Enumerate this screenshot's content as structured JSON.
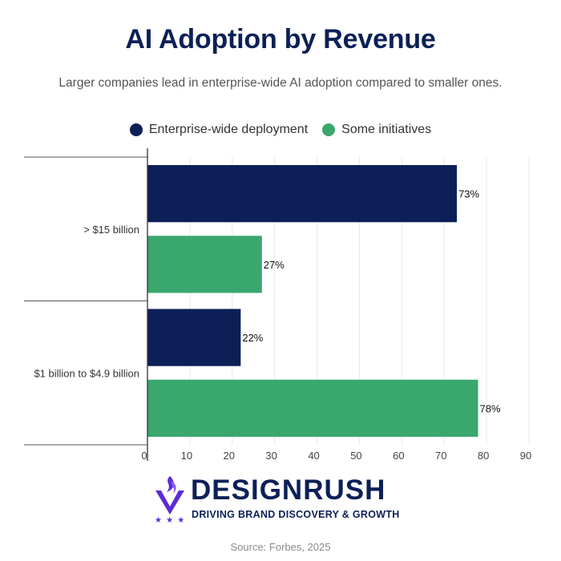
{
  "header": {
    "title": "AI Adoption by Revenue",
    "subtitle": "Larger companies lead in enterprise-wide AI adoption compared to smaller ones."
  },
  "legend": [
    {
      "label": "Enterprise-wide deployment",
      "color": "#0c2057"
    },
    {
      "label": "Some initiatives",
      "color": "#3aa76d"
    }
  ],
  "chart_data": {
    "type": "bar",
    "orientation": "horizontal",
    "categories": [
      "> $15 billion",
      "$1 billion to $4.9 billion"
    ],
    "series": [
      {
        "name": "Enterprise-wide deployment",
        "values": [
          73,
          22
        ],
        "labels": [
          "73%",
          "22%"
        ],
        "color": "#0c2057"
      },
      {
        "name": "Some initiatives",
        "values": [
          27,
          78
        ],
        "labels": [
          "27%",
          "78%"
        ],
        "color": "#3aa76d"
      }
    ],
    "xlim": [
      0,
      90
    ],
    "xticks": [
      0,
      10,
      20,
      30,
      40,
      50,
      60,
      70,
      80,
      90
    ],
    "grid": true,
    "legend_position": "top-center"
  },
  "logo": {
    "name": "DESIGNRUSH",
    "tagline": "DRIVING BRAND DISCOVERY & GROWTH",
    "stars": "★ ★ ★",
    "color": "#0c2057",
    "mark_color": "#5b2bd6"
  },
  "footer": {
    "source": "Source: Forbes, 2025"
  }
}
